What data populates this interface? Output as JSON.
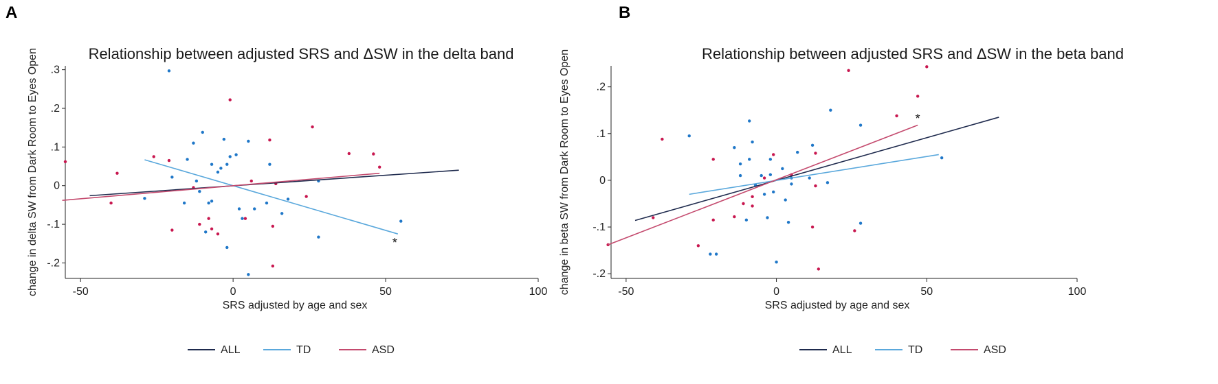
{
  "colors": {
    "all": "#1e2a4d",
    "td": "#5aa8dc",
    "asd": "#c44a6e",
    "td_point": "#1f77c8",
    "asd_point": "#c8174f",
    "frame": "#222222"
  },
  "chart_data": [
    {
      "panel": "A",
      "type": "scatter",
      "title": "Relationship between adjusted SRS and ΔSW in the delta band",
      "xlabel": "SRS adjusted by age and sex",
      "ylabel": "change in delta SW from Dark Room to Eyes Open",
      "xlim": [
        -55,
        100
      ],
      "ylim": [
        -0.24,
        0.31
      ],
      "xticks": [
        -50,
        0,
        50,
        100
      ],
      "xtick_labels": [
        "-50",
        "0",
        "50",
        "100"
      ],
      "yticks": [
        -0.2,
        -0.1,
        0,
        0.1,
        0.2,
        0.3
      ],
      "ytick_labels": [
        "-.2",
        "-.1",
        "0",
        ".1",
        ".2",
        ".3"
      ],
      "legend": [
        "ALL",
        "TD",
        "ASD"
      ],
      "series": [
        {
          "name": "TD",
          "points": [
            [
              -21,
              0.297
            ],
            [
              -29,
              -0.033
            ],
            [
              -20,
              0.022
            ],
            [
              -16,
              -0.045
            ],
            [
              -15,
              0.068
            ],
            [
              -13,
              0.11
            ],
            [
              -12,
              0.012
            ],
            [
              -11,
              -0.015
            ],
            [
              -10,
              0.138
            ],
            [
              -9,
              -0.12
            ],
            [
              -8,
              -0.045
            ],
            [
              -7,
              0.055
            ],
            [
              -7,
              -0.04
            ],
            [
              -5,
              0.035
            ],
            [
              -4,
              0.045
            ],
            [
              -3,
              0.12
            ],
            [
              -2,
              0.055
            ],
            [
              -2,
              -0.16
            ],
            [
              -1,
              0.075
            ],
            [
              1,
              0.08
            ],
            [
              2,
              -0.06
            ],
            [
              3,
              -0.085
            ],
            [
              5,
              -0.23
            ],
            [
              5,
              0.115
            ],
            [
              7,
              -0.06
            ],
            [
              11,
              -0.045
            ],
            [
              12,
              0.055
            ],
            [
              16,
              -0.072
            ],
            [
              18,
              -0.035
            ],
            [
              28,
              -0.133
            ],
            [
              28,
              0.012
            ],
            [
              55,
              -0.092
            ]
          ]
        },
        {
          "name": "ASD",
          "points": [
            [
              -55,
              0.062
            ],
            [
              -40,
              -0.045
            ],
            [
              -38,
              0.032
            ],
            [
              -26,
              0.075
            ],
            [
              -21,
              0.065
            ],
            [
              -20,
              -0.115
            ],
            [
              -13,
              -0.005
            ],
            [
              -11,
              -0.1
            ],
            [
              -8,
              -0.085
            ],
            [
              -7,
              -0.112
            ],
            [
              -5,
              -0.125
            ],
            [
              -1,
              0.222
            ],
            [
              4,
              -0.085
            ],
            [
              6,
              0.012
            ],
            [
              12,
              0.118
            ],
            [
              13,
              -0.105
            ],
            [
              13,
              -0.208
            ],
            [
              14,
              0.005
            ],
            [
              24,
              -0.028
            ],
            [
              26,
              0.152
            ],
            [
              38,
              0.083
            ],
            [
              46,
              0.082
            ],
            [
              48,
              0.048
            ]
          ]
        }
      ],
      "fit_lines": [
        {
          "name": "ALL",
          "x": [
            -47,
            74
          ],
          "y": [
            -0.026,
            0.04
          ]
        },
        {
          "name": "TD",
          "x": [
            -29,
            54
          ],
          "y": [
            0.067,
            -0.125
          ]
        },
        {
          "name": "ASD",
          "x": [
            -56,
            48
          ],
          "y": [
            -0.038,
            0.032
          ]
        }
      ],
      "annotation": {
        "text": "*",
        "x": 53,
        "y": -0.148
      }
    },
    {
      "panel": "B",
      "type": "scatter",
      "title": "Relationship between adjusted SRS and ΔSW in the beta band",
      "xlabel": "SRS adjusted by age and sex",
      "ylabel": "change in beta SW from Dark Room to Eyes Open",
      "xlim": [
        -55,
        100
      ],
      "ylim": [
        -0.21,
        0.245
      ],
      "xticks": [
        -50,
        0,
        50,
        100
      ],
      "xtick_labels": [
        "-50",
        "0",
        "50",
        "100"
      ],
      "yticks": [
        -0.2,
        -0.1,
        0,
        0.1,
        0.2
      ],
      "ytick_labels": [
        "-.2",
        "-.1",
        "0",
        ".1",
        ".2"
      ],
      "legend": [
        "ALL",
        "TD",
        "ASD"
      ],
      "series": [
        {
          "name": "TD",
          "points": [
            [
              -29,
              0.095
            ],
            [
              -22,
              -0.158
            ],
            [
              -20,
              -0.158
            ],
            [
              -14,
              0.07
            ],
            [
              -12,
              0.035
            ],
            [
              -12,
              0.01
            ],
            [
              -10,
              -0.085
            ],
            [
              -9,
              0.127
            ],
            [
              -9,
              0.045
            ],
            [
              -8,
              0.082
            ],
            [
              -7,
              -0.01
            ],
            [
              -5,
              0.01
            ],
            [
              -4,
              -0.03
            ],
            [
              -3,
              -0.08
            ],
            [
              -2,
              0.012
            ],
            [
              -2,
              0.045
            ],
            [
              -1,
              -0.025
            ],
            [
              0,
              -0.175
            ],
            [
              2,
              0.025
            ],
            [
              3,
              -0.042
            ],
            [
              4,
              -0.09
            ],
            [
              5,
              0.005
            ],
            [
              5,
              -0.008
            ],
            [
              7,
              0.06
            ],
            [
              11,
              0.005
            ],
            [
              12,
              0.075
            ],
            [
              17,
              -0.005
            ],
            [
              18,
              0.15
            ],
            [
              28,
              0.118
            ],
            [
              28,
              -0.092
            ],
            [
              55,
              0.048
            ]
          ]
        },
        {
          "name": "ASD",
          "points": [
            [
              -56,
              -0.138
            ],
            [
              -41,
              -0.08
            ],
            [
              -38,
              0.088
            ],
            [
              -26,
              -0.14
            ],
            [
              -21,
              0.045
            ],
            [
              -21,
              -0.085
            ],
            [
              -14,
              -0.078
            ],
            [
              -11,
              -0.05
            ],
            [
              -8,
              -0.035
            ],
            [
              -8,
              -0.055
            ],
            [
              -4,
              0.005
            ],
            [
              -1,
              0.055
            ],
            [
              5,
              0.012
            ],
            [
              12,
              -0.1
            ],
            [
              13,
              0.058
            ],
            [
              13,
              -0.012
            ],
            [
              14,
              -0.19
            ],
            [
              24,
              0.235
            ],
            [
              26,
              -0.108
            ],
            [
              40,
              0.138
            ],
            [
              47,
              0.18
            ],
            [
              50,
              0.243
            ]
          ]
        }
      ],
      "fit_lines": [
        {
          "name": "ALL",
          "x": [
            -47,
            74
          ],
          "y": [
            -0.086,
            0.135
          ]
        },
        {
          "name": "TD",
          "x": [
            -29,
            54
          ],
          "y": [
            -0.03,
            0.055
          ]
        },
        {
          "name": "ASD",
          "x": [
            -56,
            47
          ],
          "y": [
            -0.138,
            0.118
          ]
        }
      ],
      "annotation": {
        "text": "*",
        "x": 47,
        "y": 0.132
      }
    }
  ]
}
